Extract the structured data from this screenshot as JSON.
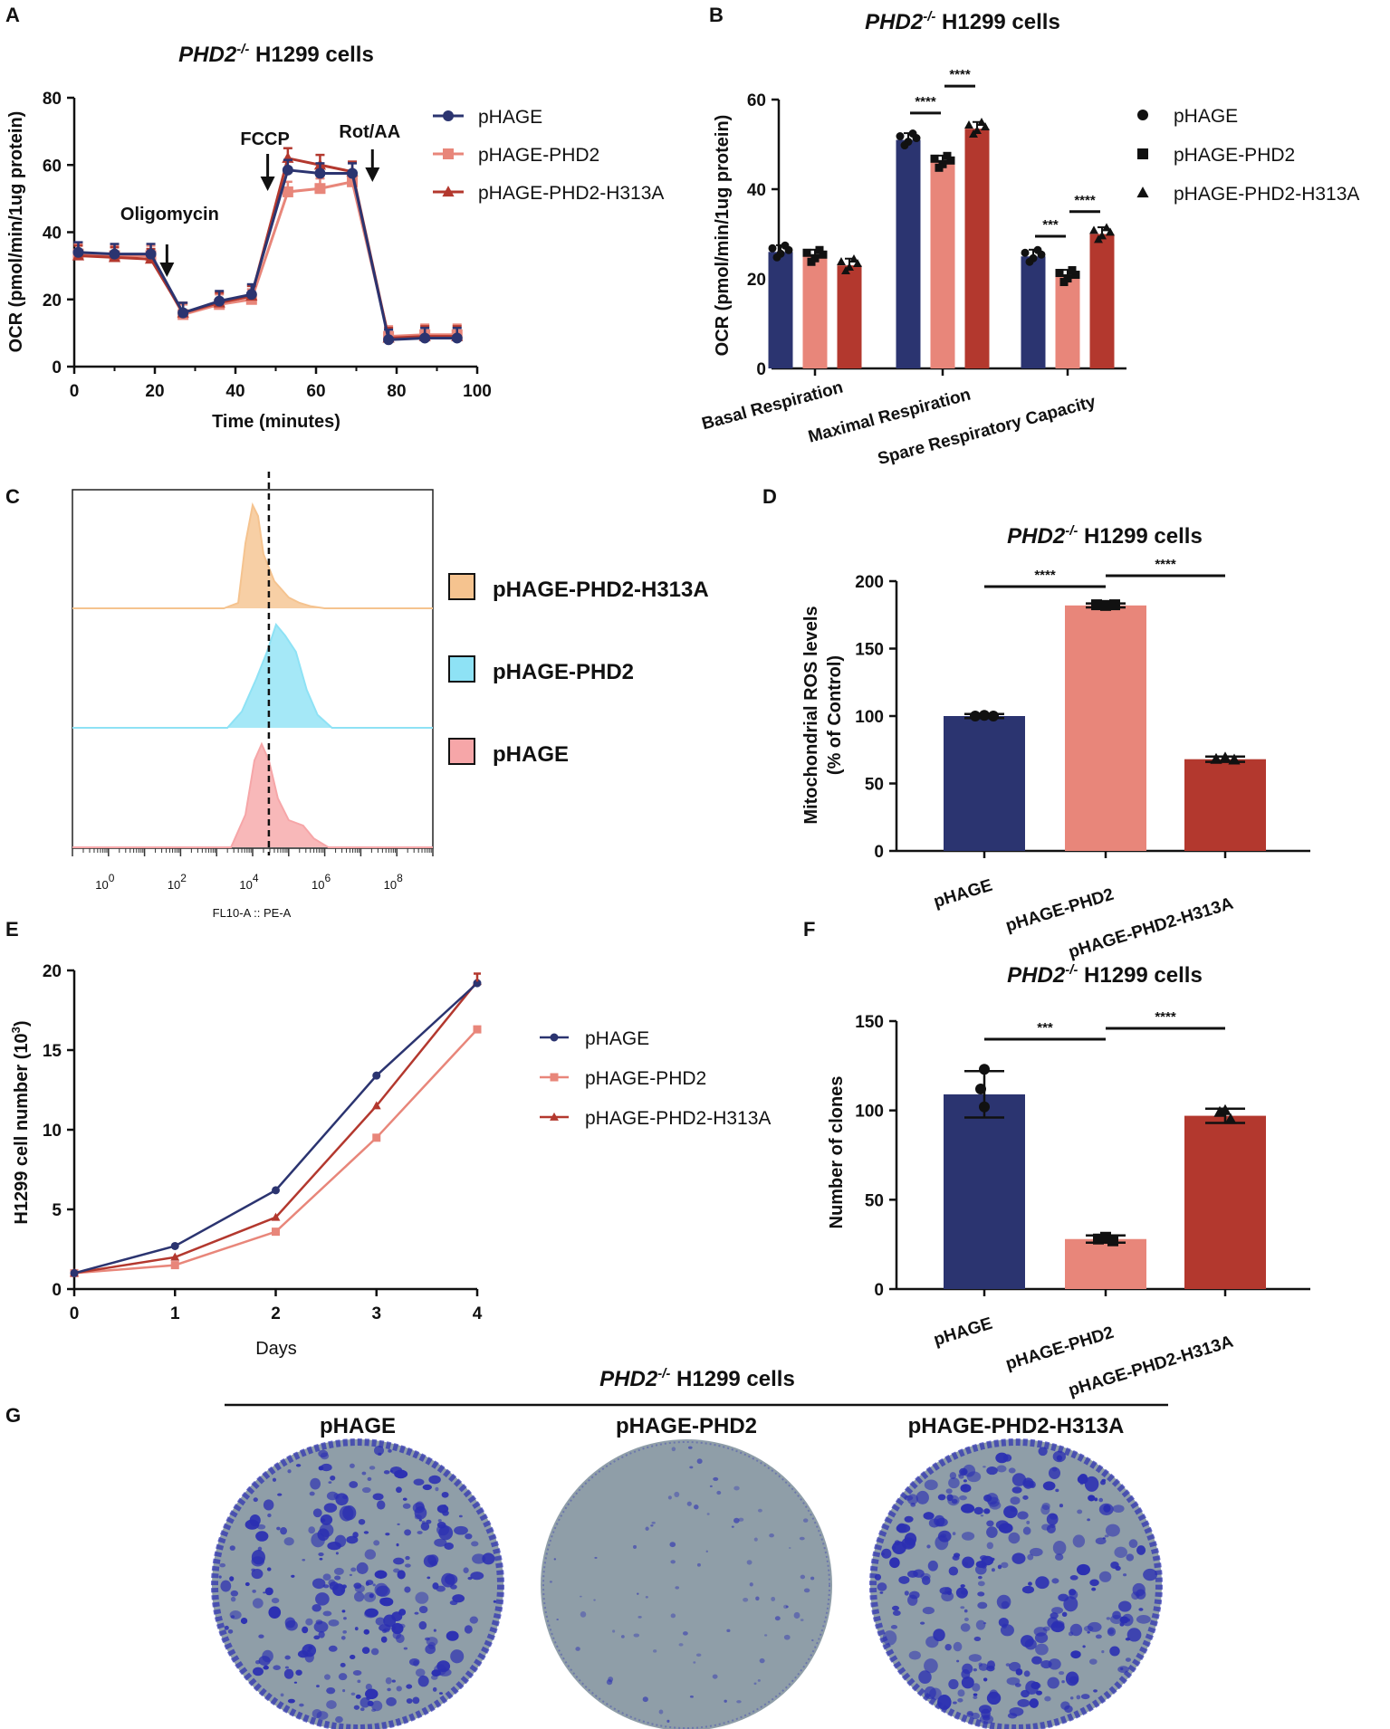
{
  "colors": {
    "navy": "#2b3470",
    "salmon": "#e8867a",
    "red": "#b3382e",
    "salmon_bright": "#f08b80",
    "orange": "#f5c38f",
    "cyan": "#8ee2f5",
    "pink": "#f6a6a8",
    "plate": "#8f9ea8",
    "stain": "#2b2fb2"
  },
  "shared": {
    "cell_line": " H1299 cells",
    "ko_gene": "PHD2",
    "ko_sup": "-/-"
  },
  "chart_data": [
    {
      "panel": "A",
      "type": "line",
      "xlabel": "Time (minutes)",
      "ylabel": "OCR (pmol/min/1ug protein)",
      "xlim": [
        0,
        100
      ],
      "ylim": [
        0,
        80
      ],
      "xticks": [
        0,
        20,
        40,
        60,
        80,
        100
      ],
      "yticks": [
        0,
        20,
        40,
        60,
        80
      ],
      "annotations": [
        {
          "label": "Oligomycin",
          "x": 23
        },
        {
          "label": "FCCP",
          "x": 48
        },
        {
          "label": "Rot/AA",
          "x": 74
        }
      ],
      "series": [
        {
          "name": "pHAGE",
          "color": "#2b3470",
          "marker": "circle",
          "x": [
            1,
            10,
            19,
            27,
            36,
            44,
            53,
            61,
            69,
            78,
            87,
            95
          ],
          "y": [
            34,
            33.5,
            33.5,
            16,
            19.5,
            21.5,
            58.5,
            57.5,
            57.5,
            8,
            8.5,
            8.5
          ]
        },
        {
          "name": "pHAGE-PHD2",
          "color": "#e8867a",
          "marker": "square",
          "x": [
            1,
            10,
            19,
            27,
            36,
            44,
            53,
            61,
            69,
            78,
            87,
            95
          ],
          "y": [
            33.5,
            33,
            33,
            15.5,
            18.5,
            20,
            52,
            53,
            55,
            9,
            9.5,
            9.5
          ]
        },
        {
          "name": "pHAGE-PHD2-H313A",
          "color": "#b3382e",
          "marker": "triangle",
          "x": [
            1,
            10,
            19,
            27,
            36,
            44,
            53,
            61,
            69,
            78,
            87,
            95
          ],
          "y": [
            33,
            32.5,
            32,
            16,
            19,
            21,
            62,
            60,
            58,
            8.5,
            9,
            9
          ]
        }
      ]
    },
    {
      "panel": "B",
      "type": "bar",
      "ylabel": "OCR (pmol/min/1ug protein)",
      "ylim": [
        0,
        60
      ],
      "yticks": [
        0,
        20,
        40,
        60
      ],
      "categories": [
        "Basal Respiration",
        "Maximal Respiration",
        "Spare Respiratory Capacity"
      ],
      "series": [
        {
          "name": "pHAGE",
          "color": "#2b3470",
          "marker": "circle",
          "values": [
            26,
            51,
            25
          ]
        },
        {
          "name": "pHAGE-PHD2",
          "color": "#e8867a",
          "marker": "square",
          "values": [
            25,
            46,
            20.5
          ]
        },
        {
          "name": "pHAGE-PHD2-H313A",
          "color": "#b3382e",
          "marker": "triangle",
          "values": [
            23,
            53.5,
            30
          ]
        }
      ],
      "significance": [
        {
          "category": "Maximal Respiration",
          "from": "pHAGE",
          "to": "pHAGE-PHD2",
          "label": "****",
          "y": 57
        },
        {
          "category": "Maximal Respiration",
          "from": "pHAGE-PHD2",
          "to": "pHAGE-PHD2-H313A",
          "label": "****",
          "y": 63
        },
        {
          "category": "Spare Respiratory Capacity",
          "from": "pHAGE",
          "to": "pHAGE-PHD2",
          "label": "***",
          "y": 29.5
        },
        {
          "category": "Spare Respiratory Capacity",
          "from": "pHAGE-PHD2",
          "to": "pHAGE-PHD2-H313A",
          "label": "****",
          "y": 35
        }
      ]
    },
    {
      "panel": "C",
      "type": "histogram",
      "xlabel": "FL10-A :: PE-A",
      "xscale": "log10",
      "xlim_exp": [
        -1,
        9
      ],
      "xtick_exponents": [
        0,
        2,
        4,
        6,
        8
      ],
      "reference_line_exp": 4.45,
      "series": [
        {
          "name": "pHAGE-PHD2-H313A",
          "color": "#f5c38f",
          "peak_exp": 4.1
        },
        {
          "name": "pHAGE-PHD2",
          "color": "#8ee2f5",
          "peak_exp": 4.7
        },
        {
          "name": "pHAGE",
          "color": "#f6a6a8",
          "peak_exp": 4.3
        }
      ]
    },
    {
      "panel": "D",
      "type": "bar",
      "ylabel": "Mitochondrial ROS levels",
      "ylabel2": "(% of Control)",
      "ylim": [
        0,
        200
      ],
      "yticks": [
        0,
        50,
        100,
        150,
        200
      ],
      "categories": [
        "pHAGE",
        "pHAGE-PHD2",
        "pHAGE-PHD2-H313A"
      ],
      "values": [
        100,
        182,
        68
      ],
      "colors": [
        "#2b3470",
        "#e8867a",
        "#b3382e"
      ],
      "significance": [
        {
          "from": 0,
          "to": 1,
          "label": "****"
        },
        {
          "from": 1,
          "to": 2,
          "label": "****"
        }
      ]
    },
    {
      "panel": "E",
      "type": "line",
      "xlabel": "Days",
      "ylabel": "H1299 cell number (10",
      "ylabel_sup": "3",
      "xlim": [
        0,
        4
      ],
      "ylim": [
        0,
        20
      ],
      "xticks": [
        0,
        1,
        2,
        3,
        4
      ],
      "yticks": [
        0,
        5,
        10,
        15,
        20
      ],
      "series": [
        {
          "name": "pHAGE",
          "color": "#2b3470",
          "marker": "circle",
          "x": [
            0,
            1,
            2,
            3,
            4
          ],
          "y": [
            1,
            2.7,
            6.2,
            13.4,
            19.2
          ]
        },
        {
          "name": "pHAGE-PHD2",
          "color": "#e8867a",
          "marker": "square",
          "x": [
            0,
            1,
            2,
            3,
            4
          ],
          "y": [
            1,
            1.5,
            3.6,
            9.5,
            16.3
          ]
        },
        {
          "name": "pHAGE-PHD2-H313A",
          "color": "#b3382e",
          "marker": "triangle",
          "x": [
            0,
            1,
            2,
            3,
            4
          ],
          "y": [
            1,
            2,
            4.5,
            11.5,
            19.3
          ]
        }
      ]
    },
    {
      "panel": "F",
      "type": "bar",
      "ylabel": "Number of clones",
      "ylim": [
        0,
        150
      ],
      "yticks": [
        0,
        50,
        100,
        150
      ],
      "categories": [
        "pHAGE",
        "pHAGE-PHD2",
        "pHAGE-PHD2-H313A"
      ],
      "values": [
        109,
        28,
        97
      ],
      "colors": [
        "#2b3470",
        "#e8867a",
        "#b3382e"
      ],
      "significance": [
        {
          "from": 0,
          "to": 1,
          "label": "***"
        },
        {
          "from": 1,
          "to": 2,
          "label": "****"
        }
      ]
    }
  ],
  "panel_g": {
    "letter": "G",
    "plates": [
      "pHAGE",
      "pHAGE-PHD2",
      "pHAGE-PHD2-H313A"
    ],
    "colony_density": [
      0.9,
      0.25,
      0.95
    ]
  },
  "letters": [
    "A",
    "B",
    "C",
    "D",
    "E",
    "F"
  ]
}
